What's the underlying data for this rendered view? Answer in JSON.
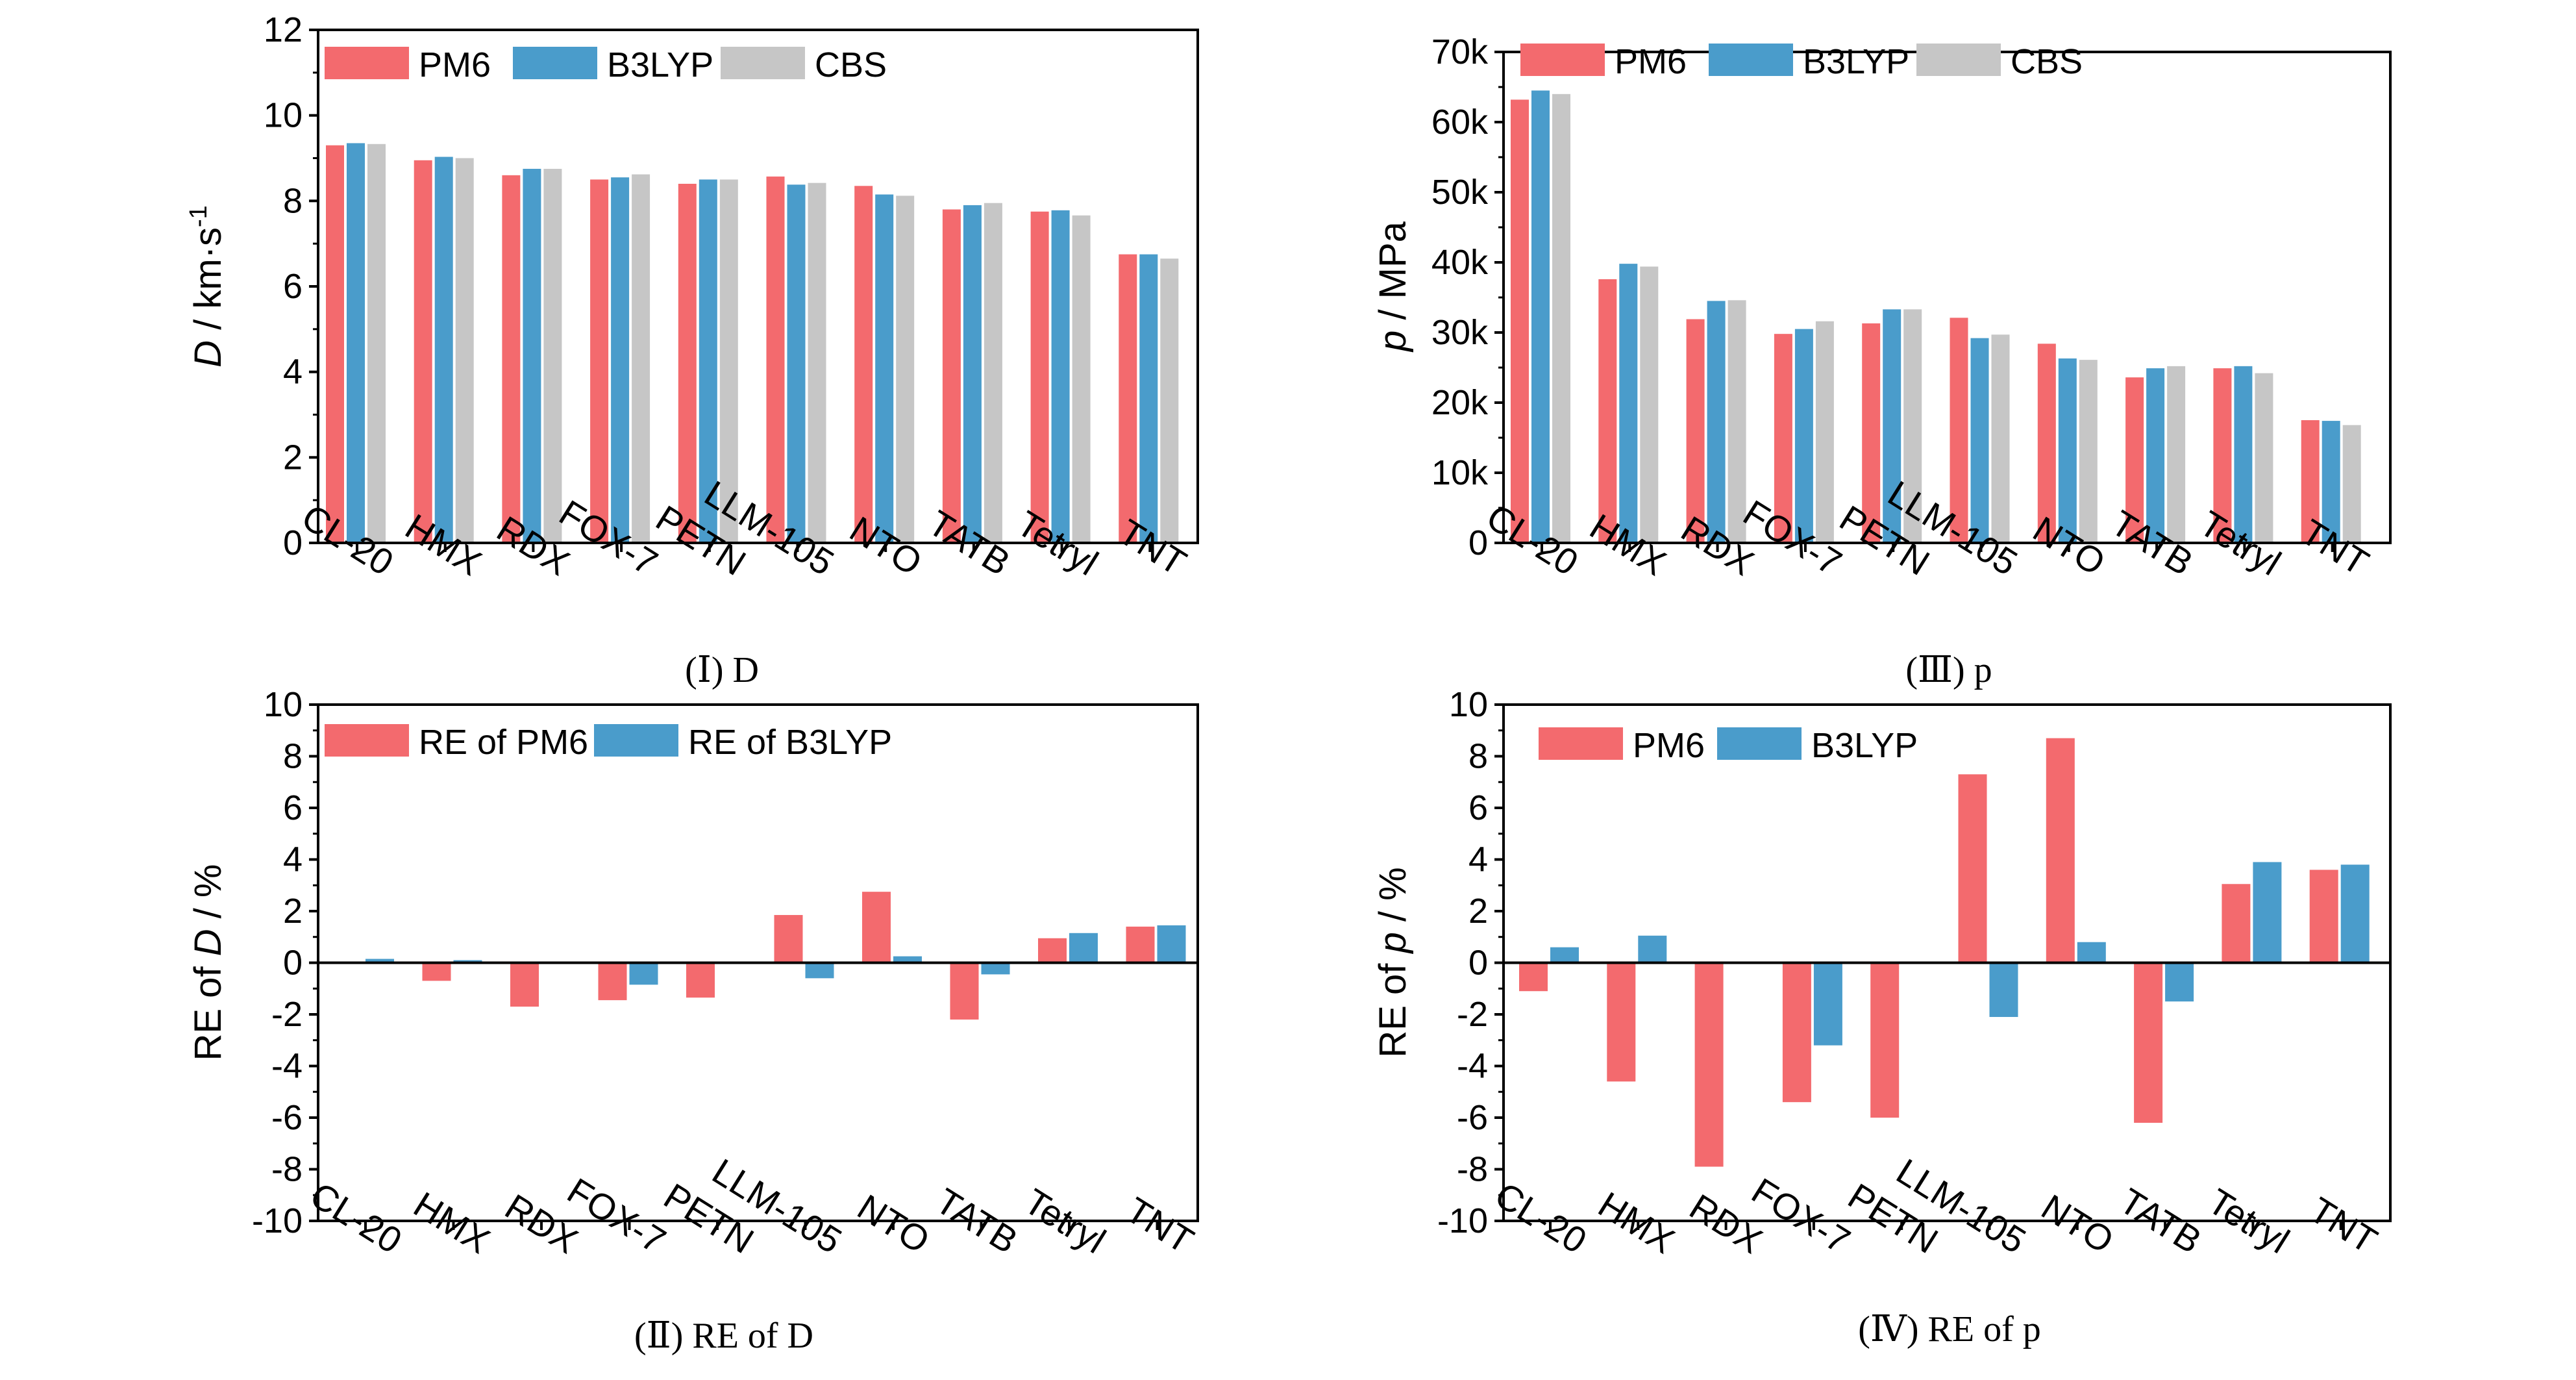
{
  "colors": {
    "PM6": "#f36a6e",
    "B3LYP": "#4a9ccb",
    "CBS": "#c6c6c6",
    "axis": "#000000"
  },
  "chart_data": [
    {
      "id": "I",
      "type": "bar",
      "caption": "(Ⅰ) D",
      "ylabel_italic": "D",
      "ylabel_rest": " / km·s",
      "ylabel_sup": "-1",
      "xlabel": "",
      "ylim": [
        0,
        12
      ],
      "yticks": [
        "0",
        "2",
        "4",
        "6",
        "8",
        "10",
        "12"
      ],
      "categories": [
        "CL-20",
        "HMX",
        "RDX",
        "FOX-7",
        "PETN",
        "LLM-105",
        "NTO",
        "TATB",
        "Tetryl",
        "TNT"
      ],
      "legend": [
        "PM6",
        "B3LYP",
        "CBS"
      ],
      "series": [
        {
          "name": "PM6",
          "values": [
            9.3,
            8.95,
            8.6,
            8.5,
            8.4,
            8.57,
            8.35,
            7.8,
            7.75,
            6.75
          ]
        },
        {
          "name": "B3LYP",
          "values": [
            9.35,
            9.03,
            8.75,
            8.55,
            8.5,
            8.38,
            8.15,
            7.9,
            7.78,
            6.75
          ]
        },
        {
          "name": "CBS",
          "values": [
            9.33,
            9.0,
            8.75,
            8.62,
            8.5,
            8.42,
            8.12,
            7.95,
            7.66,
            6.65
          ]
        }
      ]
    },
    {
      "id": "III",
      "type": "bar",
      "caption": "(Ⅲ) p",
      "ylabel_italic": "p",
      "ylabel_rest": " / MPa",
      "ylabel_sup": "",
      "xlabel": "",
      "ylim": [
        0,
        70000
      ],
      "yticks": [
        "0",
        "10k",
        "20k",
        "30k",
        "40k",
        "50k",
        "60k",
        "70k"
      ],
      "categories": [
        "CL-20",
        "HMX",
        "RDX",
        "FOX-7",
        "PETN",
        "LLM-105",
        "NTO",
        "TATB",
        "Tetryl",
        "TNT"
      ],
      "legend": [
        "PM6",
        "B3LYP",
        "CBS"
      ],
      "series": [
        {
          "name": "PM6",
          "values": [
            63200,
            37600,
            31900,
            29800,
            31300,
            32100,
            28400,
            23600,
            24900,
            17500
          ]
        },
        {
          "name": "B3LYP",
          "values": [
            64500,
            39800,
            34500,
            30500,
            33300,
            29200,
            26300,
            24900,
            25200,
            17400
          ]
        },
        {
          "name": "CBS",
          "values": [
            64000,
            39400,
            34600,
            31600,
            33300,
            29700,
            26100,
            25200,
            24200,
            16800
          ]
        }
      ]
    },
    {
      "id": "II",
      "type": "bar",
      "caption": "(Ⅱ) RE of D",
      "ylabel_italic": "D",
      "ylabel_pre": "RE of ",
      "ylabel_rest": " / %",
      "xlabel": "",
      "ylim": [
        -10,
        10
      ],
      "yticks": [
        "-10",
        "-8",
        "-6",
        "-4",
        "-2",
        "0",
        "2",
        "4",
        "6",
        "8",
        "10"
      ],
      "categories": [
        "CL-20",
        "HMX",
        "RDX",
        "FOX-7",
        "PETN",
        "LLM-105",
        "NTO",
        "TATB",
        "Tetryl",
        "TNT"
      ],
      "legend": [
        "RE of PM6",
        "RE of B3LYP"
      ],
      "series": [
        {
          "name": "RE of PM6",
          "values": [
            -0.05,
            -0.7,
            -1.7,
            -1.45,
            -1.35,
            1.85,
            2.75,
            -2.2,
            0.95,
            1.4
          ]
        },
        {
          "name": "RE of B3LYP",
          "values": [
            0.15,
            0.1,
            0.0,
            -0.85,
            0.0,
            -0.6,
            0.25,
            -0.45,
            1.15,
            1.45
          ]
        }
      ]
    },
    {
      "id": "IV",
      "type": "bar",
      "caption": "(Ⅳ) RE of p",
      "ylabel_italic": "p",
      "ylabel_pre": "RE of ",
      "ylabel_rest": " / %",
      "xlabel": "",
      "ylim": [
        -10,
        10
      ],
      "yticks": [
        "-10",
        "-8",
        "-6",
        "-4",
        "-2",
        "0",
        "2",
        "4",
        "6",
        "8",
        "10"
      ],
      "categories": [
        "CL-20",
        "HMX",
        "RDX",
        "FOX-7",
        "PETN",
        "LLM-105",
        "NTO",
        "TATB",
        "Tetryl",
        "TNT"
      ],
      "legend": [
        "PM6",
        "B3LYP"
      ],
      "series": [
        {
          "name": "PM6",
          "values": [
            -1.1,
            -4.6,
            -7.9,
            -5.4,
            -6.0,
            7.3,
            8.7,
            -6.2,
            3.05,
            3.6
          ]
        },
        {
          "name": "B3LYP",
          "values": [
            0.6,
            1.05,
            0.0,
            -3.2,
            0.0,
            -2.1,
            0.8,
            -1.5,
            3.9,
            3.8
          ]
        }
      ]
    }
  ]
}
